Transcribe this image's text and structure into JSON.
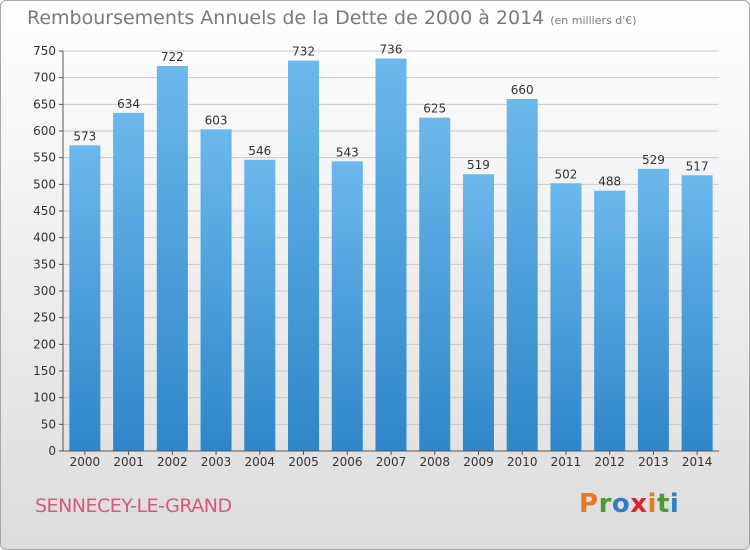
{
  "header": {
    "title": "Remboursements Annuels de la Dette de 2000 à 2014",
    "unit_note": "(en milliers d'€)"
  },
  "footer": {
    "commune": "SENNECEY-LE-GRAND",
    "logo_text": "Proxiti"
  },
  "colors": {
    "bar_light": "#6bb8ec",
    "bar_dark": "#2f86c8",
    "grid": "#c8c8c8",
    "title": "#7a7a7a",
    "commune": "#d45a7a"
  },
  "chart_data": {
    "type": "bar",
    "title": "Remboursements Annuels de la Dette de 2000 à 2014",
    "xlabel": "",
    "ylabel": "",
    "categories": [
      "2000",
      "2001",
      "2002",
      "2003",
      "2004",
      "2005",
      "2006",
      "2007",
      "2008",
      "2009",
      "2010",
      "2011",
      "2012",
      "2013",
      "2014"
    ],
    "values": [
      573,
      634,
      722,
      603,
      546,
      732,
      543,
      736,
      625,
      519,
      660,
      502,
      488,
      529,
      517
    ],
    "ylim": [
      0,
      750
    ],
    "yticks": [
      0,
      50,
      100,
      150,
      200,
      250,
      300,
      350,
      400,
      450,
      500,
      550,
      600,
      650,
      700,
      750
    ],
    "grid": true,
    "data_labels": true
  }
}
